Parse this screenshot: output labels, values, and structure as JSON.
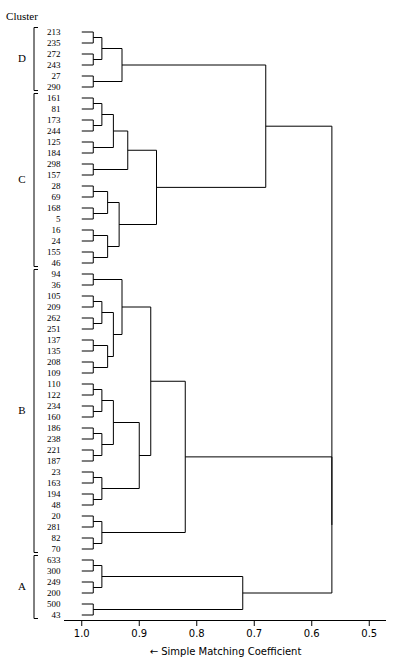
{
  "chart_data": {
    "type": "dendrogram",
    "xlabel": "Simple Matching Coefficient",
    "xlim": [
      1.03,
      0.47
    ],
    "xticks": [
      {
        "value": 1.0,
        "label": "1.0"
      },
      0.9,
      0.8,
      0.7,
      0.6,
      0.5
    ],
    "leaf_height": 1.0,
    "cluster_title": "Cluster",
    "clusters": [
      {
        "label": "D",
        "first": "213",
        "last": "290"
      },
      {
        "label": "C",
        "first": "161",
        "last": "46"
      },
      {
        "label": "B",
        "first": "94",
        "last": "70"
      },
      {
        "label": "A",
        "first": "633",
        "last": "43"
      }
    ],
    "tree": {
      "height": 0.565,
      "children": [
        {
          "height": 0.68,
          "children": [
            {
              "height": 0.93,
              "children": [
                {
                  "height": 0.965,
                  "children": [
                    {
                      "height": 0.98,
                      "children": [
                        "213",
                        "235"
                      ]
                    },
                    {
                      "height": 0.98,
                      "children": [
                        "272",
                        "243"
                      ]
                    }
                  ]
                },
                {
                  "height": 0.98,
                  "children": [
                    "27",
                    "290"
                  ]
                }
              ]
            },
            {
              "height": 0.87,
              "children": [
                {
                  "height": 0.92,
                  "children": [
                    {
                      "height": 0.945,
                      "children": [
                        {
                          "height": 0.965,
                          "children": [
                            {
                              "height": 0.98,
                              "children": [
                                "161",
                                "81"
                              ]
                            },
                            {
                              "height": 0.98,
                              "children": [
                                "173",
                                "244"
                              ]
                            }
                          ]
                        },
                        {
                          "height": 0.98,
                          "children": [
                            "125",
                            "184"
                          ]
                        }
                      ]
                    },
                    {
                      "height": 0.98,
                      "children": [
                        "298",
                        "157"
                      ]
                    }
                  ]
                },
                {
                  "height": 0.935,
                  "children": [
                    {
                      "height": 0.955,
                      "children": [
                        {
                          "height": 0.98,
                          "children": [
                            "28",
                            "69"
                          ]
                        },
                        {
                          "height": 0.98,
                          "children": [
                            "168",
                            "5"
                          ]
                        }
                      ]
                    },
                    {
                      "height": 0.955,
                      "children": [
                        {
                          "height": 0.98,
                          "children": [
                            "16",
                            "24"
                          ]
                        },
                        {
                          "height": 0.98,
                          "children": [
                            "155",
                            "46"
                          ]
                        }
                      ]
                    }
                  ]
                }
              ]
            }
          ]
        },
        {
          "height": 0.565,
          "children": [
            {
              "height": 0.82,
              "children": [
                {
                  "height": 0.88,
                  "children": [
                    {
                      "height": 0.93,
                      "children": [
                        {
                          "height": 0.98,
                          "children": [
                            "94",
                            "36"
                          ]
                        },
                        {
                          "height": 0.945,
                          "children": [
                            {
                              "height": 0.965,
                              "children": [
                                {
                                  "height": 0.98,
                                  "children": [
                                    "105",
                                    "209"
                                  ]
                                },
                                {
                                  "height": 0.98,
                                  "children": [
                                    "262",
                                    "251"
                                  ]
                                }
                              ]
                            },
                            {
                              "height": 0.955,
                              "children": [
                                {
                                  "height": 0.98,
                                  "children": [
                                    "137",
                                    "135"
                                  ]
                                },
                                {
                                  "height": 0.98,
                                  "children": [
                                    "208",
                                    "109"
                                  ]
                                }
                              ]
                            }
                          ]
                        }
                      ]
                    },
                    {
                      "height": 0.9,
                      "children": [
                        {
                          "height": 0.945,
                          "children": [
                            {
                              "height": 0.965,
                              "children": [
                                {
                                  "height": 0.98,
                                  "children": [
                                    "110",
                                    "122"
                                  ]
                                },
                                {
                                  "height": 0.98,
                                  "children": [
                                    "234",
                                    "160"
                                  ]
                                }
                              ]
                            },
                            {
                              "height": 0.965,
                              "children": [
                                {
                                  "height": 0.98,
                                  "children": [
                                    "186",
                                    "238"
                                  ]
                                },
                                {
                                  "height": 0.98,
                                  "children": [
                                    "221",
                                    "187"
                                  ]
                                }
                              ]
                            }
                          ]
                        },
                        {
                          "height": 0.965,
                          "children": [
                            {
                              "height": 0.98,
                              "children": [
                                "23",
                                "163"
                              ]
                            },
                            {
                              "height": 0.98,
                              "children": [
                                "194",
                                "48"
                              ]
                            }
                          ]
                        }
                      ]
                    }
                  ]
                },
                {
                  "height": 0.965,
                  "children": [
                    {
                      "height": 0.98,
                      "children": [
                        "20",
                        "281"
                      ]
                    },
                    {
                      "height": 0.98,
                      "children": [
                        "82",
                        "70"
                      ]
                    }
                  ]
                }
              ]
            },
            {
              "height": 0.72,
              "children": [
                {
                  "height": 0.965,
                  "children": [
                    {
                      "height": 0.98,
                      "children": [
                        "633",
                        "300"
                      ]
                    },
                    {
                      "height": 0.98,
                      "children": [
                        "249",
                        "200"
                      ]
                    }
                  ]
                },
                {
                  "height": 0.98,
                  "children": [
                    "500",
                    "43"
                  ]
                }
              ]
            }
          ]
        }
      ]
    }
  }
}
